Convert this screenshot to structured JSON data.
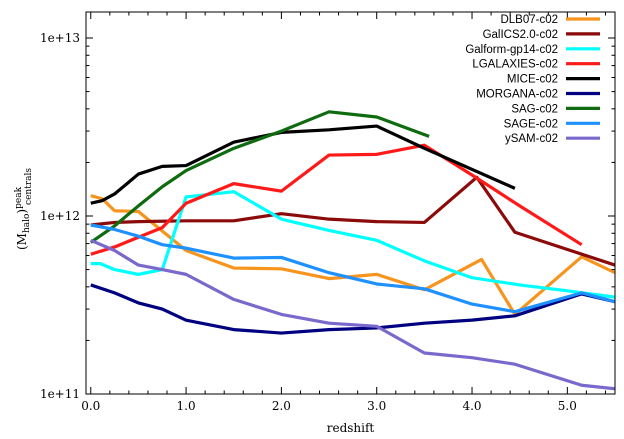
{
  "chart_data": {
    "type": "line",
    "xlabel": "redshift",
    "ylabel": {
      "base": "(M",
      "sub1": "halo",
      "mid": ")",
      "sup": "peak",
      "sub2": "centrals"
    },
    "xlim": [
      -0.05,
      5.5
    ],
    "ylim": [
      100000000000,
      14000000000000
    ],
    "yscale": "log",
    "xticks": [
      {
        "value": 0.0,
        "label": "0.0"
      },
      {
        "value": 1.0,
        "label": "1.0"
      },
      {
        "value": 2.0,
        "label": "2.0"
      },
      {
        "value": 3.0,
        "label": "3.0"
      },
      {
        "value": 4.0,
        "label": "4.0"
      },
      {
        "value": 5.0,
        "label": "5.0"
      }
    ],
    "yticks": [
      {
        "value": 100000000000,
        "label": "1e+11"
      },
      {
        "value": 1000000000000,
        "label": "1e+12"
      },
      {
        "value": 10000000000000,
        "label": "1e+13"
      }
    ],
    "legend_position": "top-right",
    "grid": false,
    "series": [
      {
        "name": "DLB07-c02",
        "color": "#f7941d",
        "x": [
          0.0,
          0.12,
          0.25,
          0.5,
          1.0,
          1.5,
          2.0,
          2.5,
          3.0,
          3.5,
          4.1,
          4.45,
          5.15,
          5.5
        ],
        "y": [
          1300000000000.0,
          1250000000000.0,
          1070000000000.0,
          1060000000000.0,
          640000000000.0,
          510000000000.0,
          505000000000.0,
          445000000000.0,
          470000000000.0,
          385000000000.0,
          570000000000.0,
          280000000000.0,
          590000000000.0,
          480000000000.0
        ]
      },
      {
        "name": "GalICS2.0-c02",
        "color": "#8b0a0a",
        "x": [
          0.0,
          0.25,
          0.5,
          1.0,
          1.5,
          2.0,
          2.5,
          3.0,
          3.5,
          4.05,
          4.45,
          5.5
        ],
        "y": [
          890000000000.0,
          920000000000.0,
          930000000000.0,
          940000000000.0,
          940000000000.0,
          1030000000000.0,
          960000000000.0,
          930000000000.0,
          920000000000.0,
          1650000000000.0,
          810000000000.0,
          530000000000.0
        ]
      },
      {
        "name": "Galform-gp14-c02",
        "color": "#00ffff",
        "x": [
          0.0,
          0.1,
          0.25,
          0.5,
          0.75,
          1.0,
          1.5,
          2.0,
          2.5,
          3.0,
          3.5,
          4.0,
          4.5,
          5.0,
          5.5
        ],
        "y": [
          540000000000.0,
          540000000000.0,
          500000000000.0,
          470000000000.0,
          500000000000.0,
          1280000000000.0,
          1370000000000.0,
          960000000000.0,
          830000000000.0,
          730000000000.0,
          560000000000.0,
          450000000000.0,
          410000000000.0,
          380000000000.0,
          350000000000.0
        ]
      },
      {
        "name": "LGALAXIES-c02",
        "color": "#ff1a1a",
        "x": [
          0.0,
          0.25,
          0.5,
          0.75,
          1.0,
          1.5,
          2.0,
          2.5,
          3.0,
          3.5,
          4.0,
          4.5,
          5.15
        ],
        "y": [
          610000000000.0,
          670000000000.0,
          760000000000.0,
          860000000000.0,
          1180000000000.0,
          1520000000000.0,
          1380000000000.0,
          2200000000000.0,
          2220000000000.0,
          2500000000000.0,
          1700000000000.0,
          1140000000000.0,
          690000000000.0
        ]
      },
      {
        "name": "MICE-c02",
        "color": "#000000",
        "x": [
          0.0,
          0.12,
          0.25,
          0.5,
          0.75,
          1.0,
          1.5,
          2.0,
          2.5,
          3.0,
          3.5,
          4.45
        ],
        "y": [
          1180000000000.0,
          1220000000000.0,
          1330000000000.0,
          1720000000000.0,
          1900000000000.0,
          1920000000000.0,
          2600000000000.0,
          2950000000000.0,
          3050000000000.0,
          3200000000000.0,
          2400000000000.0,
          1430000000000.0
        ]
      },
      {
        "name": "MORGANA-c02",
        "color": "#000080",
        "x": [
          0.0,
          0.25,
          0.5,
          0.75,
          1.0,
          1.5,
          2.0,
          2.5,
          3.0,
          3.5,
          4.0,
          4.45,
          5.15,
          5.5
        ],
        "y": [
          410000000000.0,
          370000000000.0,
          325000000000.0,
          300000000000.0,
          260000000000.0,
          230000000000.0,
          220000000000.0,
          230000000000.0,
          235000000000.0,
          250000000000.0,
          260000000000.0,
          275000000000.0,
          365000000000.0,
          330000000000.0
        ]
      },
      {
        "name": "SAG-c02",
        "color": "#0f6b0f",
        "x": [
          0.0,
          0.25,
          0.5,
          0.75,
          1.0,
          1.5,
          2.0,
          2.5,
          3.0,
          3.55
        ],
        "y": [
          710000000000.0,
          880000000000.0,
          1140000000000.0,
          1460000000000.0,
          1800000000000.0,
          2400000000000.0,
          3000000000000.0,
          3850000000000.0,
          3600000000000.0,
          2800000000000.0
        ]
      },
      {
        "name": "SAGE-c02",
        "color": "#1e90ff",
        "x": [
          0.0,
          0.25,
          0.5,
          0.75,
          1.0,
          1.5,
          2.0,
          2.5,
          3.0,
          3.5,
          4.0,
          4.45,
          5.15,
          5.5
        ],
        "y": [
          890000000000.0,
          840000000000.0,
          770000000000.0,
          690000000000.0,
          660000000000.0,
          580000000000.0,
          585000000000.0,
          480000000000.0,
          415000000000.0,
          390000000000.0,
          320000000000.0,
          290000000000.0,
          370000000000.0,
          330000000000.0
        ]
      },
      {
        "name": "ySAM-c02",
        "color": "#7b68cc",
        "x": [
          0.0,
          0.25,
          0.5,
          0.75,
          1.0,
          1.5,
          2.0,
          2.5,
          3.0,
          3.5,
          4.0,
          4.45,
          5.15,
          5.5
        ],
        "y": [
          730000000000.0,
          640000000000.0,
          530000000000.0,
          500000000000.0,
          470000000000.0,
          340000000000.0,
          280000000000.0,
          250000000000.0,
          240000000000.0,
          170000000000.0,
          160000000000.0,
          147000000000.0,
          112000000000.0,
          107000000000.0
        ]
      }
    ]
  }
}
